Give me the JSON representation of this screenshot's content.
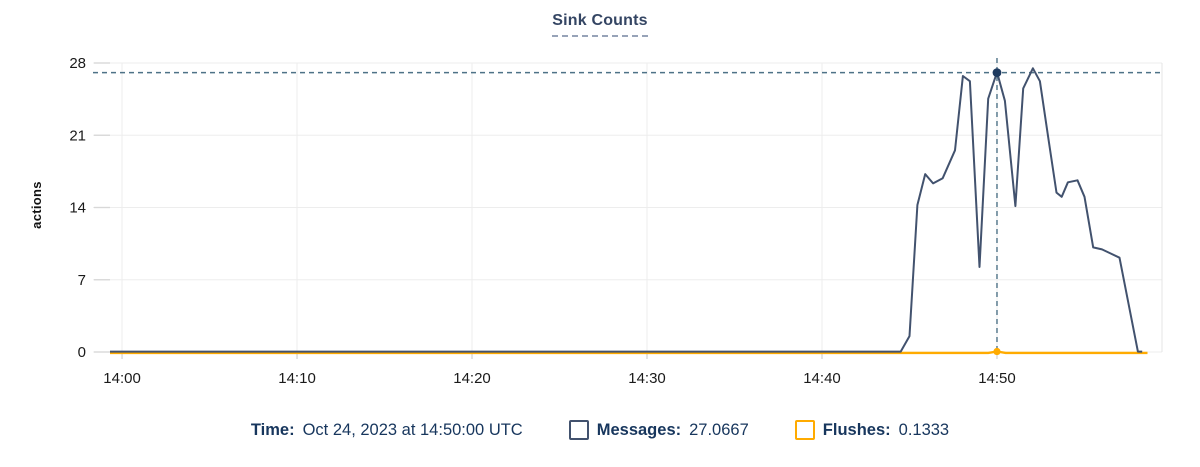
{
  "chart": {
    "title": "Sink Counts",
    "ylabel": "actions"
  },
  "legend": {
    "time_label": "Time:",
    "time_value": "Oct 24, 2023 at 14:50:00 UTC",
    "messages_label": "Messages:",
    "messages_value": "27.0667",
    "flushes_label": "Flushes:",
    "flushes_value": "0.1333"
  },
  "colors": {
    "messages_line": "#42526E",
    "flushes_line": "#FFAB00",
    "crosshair": "#4E7287",
    "marker_navy": "#1E3A5F",
    "title_text": "#344563",
    "legend_text": "#17365D",
    "grid": "#EDEDED",
    "tick_stub": "#D8D8D8",
    "plot_border": "#E4E4E4",
    "tick_text": "#1A1A1A"
  },
  "chart_data": {
    "type": "line",
    "title": "Sink Counts",
    "xlabel": "",
    "ylabel": "actions",
    "grid": true,
    "legend_position": "bottom",
    "x_axis": {
      "unit": "time UTC (minutes after 14:00)",
      "min": -1.66,
      "max": 59.43,
      "ticks": [
        {
          "t": 0,
          "label": "14:00"
        },
        {
          "t": 10,
          "label": "14:10"
        },
        {
          "t": 20,
          "label": "14:20"
        },
        {
          "t": 30,
          "label": "14:30"
        },
        {
          "t": 40,
          "label": "14:40"
        },
        {
          "t": 50,
          "label": "14:50"
        }
      ]
    },
    "y_axis": {
      "min": 0,
      "max": 28,
      "ticks": [
        0,
        7,
        14,
        21,
        28
      ]
    },
    "selected_point": {
      "time_label": "Oct 24, 2023 at 14:50:00 UTC",
      "t": 50,
      "messages": 27.0667,
      "flushes": 0.1333
    },
    "series": [
      {
        "name": "Messages",
        "color": "#42526E",
        "points": [
          [
            -0.69,
            0
          ],
          [
            5,
            0
          ],
          [
            10,
            0
          ],
          [
            15,
            0
          ],
          [
            20,
            0
          ],
          [
            25,
            0
          ],
          [
            30,
            0
          ],
          [
            35,
            0
          ],
          [
            40,
            0
          ],
          [
            44.5,
            0
          ],
          [
            45.0,
            1.5
          ],
          [
            45.45,
            14.2
          ],
          [
            45.9,
            17.2
          ],
          [
            46.35,
            16.3
          ],
          [
            46.9,
            16.8
          ],
          [
            47.6,
            19.5
          ],
          [
            48.05,
            26.7
          ],
          [
            48.45,
            26.2
          ],
          [
            49.0,
            8.2
          ],
          [
            49.5,
            24.5
          ],
          [
            50.0,
            27.0667
          ],
          [
            50.45,
            24.3
          ],
          [
            51.05,
            14.1
          ],
          [
            51.5,
            25.5
          ],
          [
            52.05,
            27.45
          ],
          [
            52.45,
            26.2
          ],
          [
            52.95,
            20.5
          ],
          [
            53.4,
            15.4
          ],
          [
            53.7,
            15.0
          ],
          [
            54.05,
            16.4
          ],
          [
            54.6,
            16.6
          ],
          [
            55.0,
            15.0
          ],
          [
            55.5,
            10.1
          ],
          [
            56.0,
            9.9
          ],
          [
            56.5,
            9.5
          ],
          [
            57.0,
            9.1
          ],
          [
            58.05,
            0
          ],
          [
            58.3,
            0
          ]
        ]
      },
      {
        "name": "Flushes",
        "color": "#FFAB00",
        "points": [
          [
            -0.69,
            0
          ],
          [
            10,
            0
          ],
          [
            20,
            0
          ],
          [
            30,
            0
          ],
          [
            40,
            0
          ],
          [
            49.5,
            0
          ],
          [
            50,
            0.1333
          ],
          [
            50.5,
            0
          ],
          [
            58.6,
            0
          ]
        ]
      }
    ]
  }
}
